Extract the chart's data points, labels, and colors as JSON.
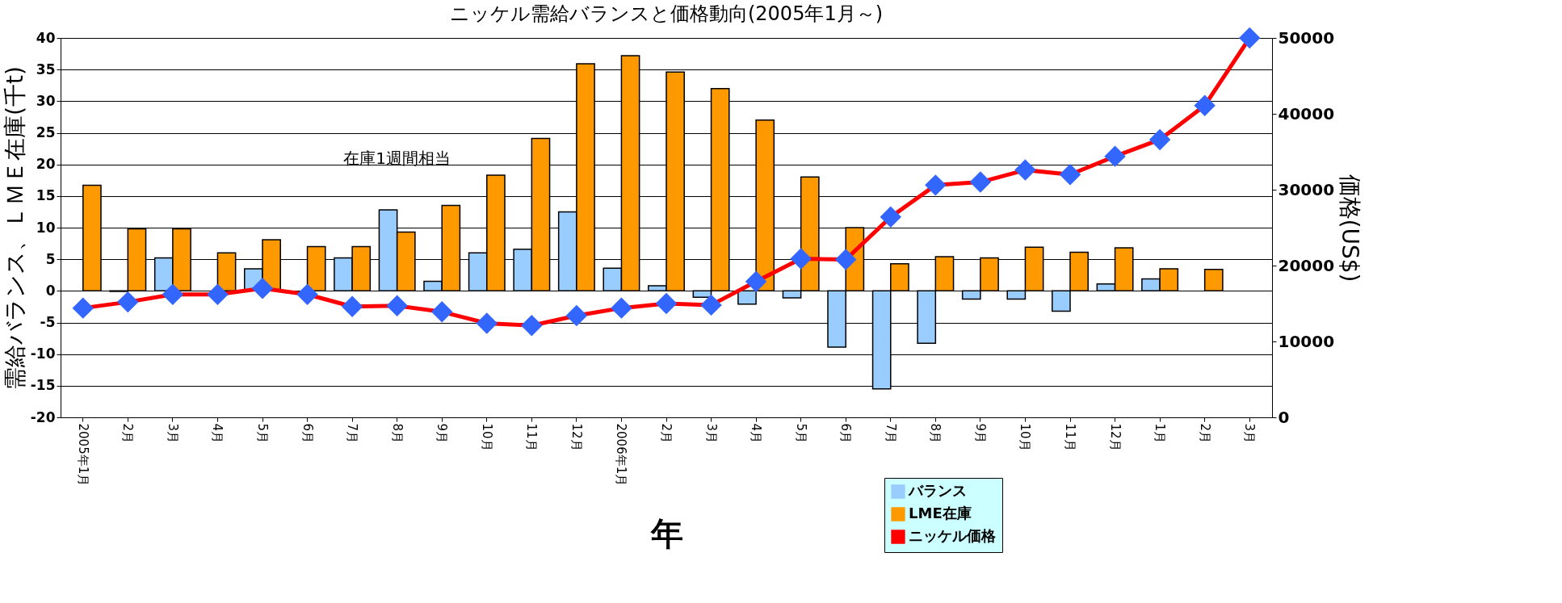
{
  "chart_data": {
    "type": "bar",
    "title": "ニッケル需給バランスと価格動向(2005年1月～)",
    "categories": [
      "2005年1月",
      "2月",
      "3月",
      "4月",
      "5月",
      "6月",
      "7月",
      "8月",
      "9月",
      "10月",
      "11月",
      "12月",
      "2006年1月",
      "2月",
      "3月",
      "4月",
      "5月",
      "6月",
      "7月",
      "8月",
      "9月",
      "10月",
      "11月",
      "12月",
      "1月",
      "2月",
      "3月"
    ],
    "xlabel": "年",
    "ylabel": "需給バランス、ＬＭＥ在庫(千t)",
    "y2label": "価格(US$)",
    "series": [
      {
        "name": "バランス",
        "color": "#99ccff",
        "values": [
          null,
          -0.1,
          5.2,
          null,
          3.5,
          null,
          5.2,
          12.8,
          1.5,
          6.0,
          6.6,
          12.5,
          3.6,
          0.8,
          -1.0,
          -2.1,
          -1.1,
          -8.9,
          -15.5,
          -8.3,
          -1.3,
          -1.3,
          -3.2,
          1.1,
          1.9,
          null,
          null
        ]
      },
      {
        "name": "LME在庫",
        "color": "#ff9900",
        "values": [
          16.7,
          9.8,
          9.8,
          6.0,
          8.1,
          7.0,
          7.0,
          9.3,
          13.5,
          18.3,
          24.1,
          35.9,
          37.2,
          34.6,
          32.0,
          27.0,
          18.0,
          10.0,
          4.3,
          5.4,
          5.2,
          6.9,
          6.1,
          6.8,
          3.5,
          3.4,
          null
        ]
      },
      {
        "name": "ニッケル価格",
        "type": "line",
        "axis": "y2",
        "color": "#ff0000",
        "values": [
          14400,
          15200,
          16200,
          16200,
          17000,
          16200,
          14600,
          14700,
          13900,
          12400,
          12100,
          13400,
          14400,
          15000,
          14800,
          17900,
          20900,
          20800,
          26400,
          30600,
          31000,
          32600,
          32000,
          34400,
          36600,
          41100,
          50000
        ]
      }
    ],
    "ylim": [
      -20,
      40
    ],
    "yticks": [
      -20,
      -15,
      -10,
      -5,
      0,
      5,
      10,
      15,
      20,
      25,
      30,
      35,
      40
    ],
    "y2lim": [
      0,
      50000
    ],
    "y2ticks": [
      0,
      10000,
      20000,
      30000,
      40000,
      50000
    ],
    "grid": "y",
    "legend": "bottom right",
    "marker": "diamond",
    "annotations": [
      "在庫1週間相当"
    ]
  }
}
